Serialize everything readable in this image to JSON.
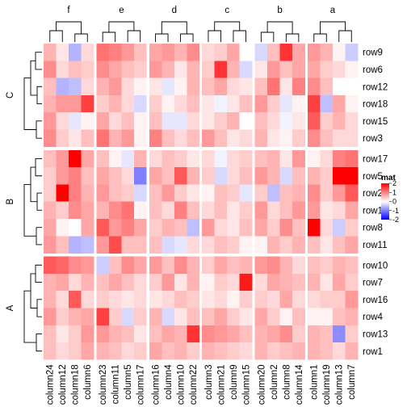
{
  "chart_data": {
    "type": "heatmap",
    "column_groups": [
      {
        "name": "f",
        "columns": [
          "column24",
          "column12",
          "column18",
          "column6"
        ]
      },
      {
        "name": "e",
        "columns": [
          "column23",
          "column11",
          "column5",
          "column17"
        ]
      },
      {
        "name": "d",
        "columns": [
          "column16",
          "column4",
          "column10",
          "column22"
        ]
      },
      {
        "name": "c",
        "columns": [
          "column3",
          "column21",
          "column9",
          "column15"
        ]
      },
      {
        "name": "b",
        "columns": [
          "column20",
          "column2",
          "column8",
          "column14"
        ]
      },
      {
        "name": "a",
        "columns": [
          "column1",
          "column19",
          "column13",
          "column7"
        ]
      }
    ],
    "row_groups": [
      {
        "name": "C",
        "rows": [
          "row9",
          "row6",
          "row12",
          "row18",
          "row15",
          "row3"
        ]
      },
      {
        "name": "B",
        "rows": [
          "row17",
          "row5",
          "row2",
          "row14",
          "row8",
          "row11"
        ]
      },
      {
        "name": "A",
        "rows": [
          "row10",
          "row7",
          "row16",
          "row4",
          "row13",
          "row1"
        ]
      }
    ],
    "values": [
      [
        0.6,
        0.2,
        -0.6,
        0.3,
        1.1,
        1.0,
        0.8,
        0.5,
        0.7,
        0.8,
        0.6,
        0.9,
        0.3,
        0.4,
        0.7,
        0.0,
        -0.3,
        0.5,
        1.6,
        0.7,
        0.8,
        0.6,
        0.1,
        -0.4
      ],
      [
        0.9,
        0.3,
        0.5,
        0.4,
        0.9,
        0.7,
        0.5,
        0.4,
        0.8,
        0.6,
        0.2,
        0.6,
        0.4,
        1.6,
        0.6,
        -0.3,
        0.2,
        0.8,
        0.5,
        0.7,
        0.7,
        0.4,
        0.3,
        0.1
      ],
      [
        0.5,
        -0.6,
        -0.5,
        0.3,
        0.6,
        0.8,
        0.3,
        0.1,
        0.2,
        -0.2,
        0.1,
        0.6,
        0.5,
        0.7,
        0.3,
        0.2,
        0.5,
        1.1,
        0.2,
        1.0,
        0.9,
        0.5,
        0.0,
        0.0
      ],
      [
        0.6,
        0.8,
        0.8,
        1.5,
        0.4,
        0.6,
        0.3,
        -0.3,
        0.4,
        0.1,
        0.3,
        0.5,
        0.2,
        -0.1,
        0.2,
        0.5,
        0.8,
        0.4,
        -0.2,
        0.1,
        1.5,
        -0.5,
        0.7,
        0.1
      ],
      [
        0.8,
        0.3,
        -0.2,
        0.1,
        0.7,
        0.3,
        0.5,
        0.1,
        0.5,
        -0.2,
        -0.2,
        0.3,
        0.2,
        0.4,
        0.6,
        0.0,
        0.5,
        0.3,
        -0.1,
        0.2,
        1.3,
        0.4,
        0.6,
        0.3
      ],
      [
        0.9,
        0.4,
        0.2,
        0.5,
        1.1,
        0.6,
        0.8,
        0.1,
        1.0,
        0.5,
        0.3,
        0.5,
        0.8,
        0.5,
        0.2,
        0.3,
        0.6,
        0.2,
        0.1,
        0.4,
        0.9,
        0.5,
        0.3,
        0.3
      ],
      [
        0.5,
        0.8,
        2.0,
        0.7,
        0.5,
        0.1,
        -0.2,
        0.6,
        0.3,
        0.5,
        0.4,
        0.2,
        0.3,
        -0.1,
        0.3,
        0.4,
        0.5,
        0.6,
        0.2,
        0.8,
        0.1,
        0.3,
        1.0,
        1.1
      ],
      [
        0.4,
        0.8,
        1.0,
        0.5,
        0.7,
        0.5,
        0.3,
        -1.0,
        0.7,
        0.5,
        1.3,
        0.6,
        0.4,
        -0.3,
        0.3,
        0.5,
        0.8,
        0.6,
        -0.3,
        0.5,
        0.6,
        0.4,
        2.0,
        2.0
      ],
      [
        0.4,
        2.0,
        1.0,
        0.6,
        0.8,
        0.5,
        0.4,
        -0.3,
        0.5,
        0.8,
        0.4,
        0.2,
        0.1,
        0.5,
        0.4,
        -0.2,
        0.4,
        -0.5,
        0.5,
        0.6,
        0.9,
        0.4,
        0.8,
        1.3
      ],
      [
        0.6,
        0.4,
        0.9,
        0.7,
        0.6,
        0.9,
        1.1,
        0.1,
        0.5,
        0.3,
        1.0,
        0.5,
        0.3,
        0.5,
        0.2,
        0.4,
        0.8,
        0.3,
        0.5,
        0.8,
        0.8,
        0.2,
        0.3,
        0.7
      ],
      [
        0.7,
        0.1,
        0.0,
        0.7,
        1.3,
        0.8,
        1.0,
        0.7,
        0.4,
        0.6,
        0.5,
        -0.5,
        0.8,
        0.3,
        0.2,
        0.5,
        0.7,
        0.4,
        0.9,
        0.5,
        2.1,
        0.3,
        -0.4,
        0.4
      ],
      [
        0.8,
        0.5,
        -0.6,
        -0.5,
        0.8,
        1.4,
        0.5,
        0.5,
        0.5,
        -0.3,
        -0.2,
        0.3,
        0.3,
        0.5,
        0.4,
        0.1,
        0.1,
        0.6,
        0.4,
        0.6,
        0.5,
        0.2,
        0.5,
        0.7
      ],
      [
        1.3,
        1.2,
        0.9,
        0.8,
        -0.4,
        0.5,
        0.9,
        0.7,
        0.8,
        0.5,
        0.9,
        0.6,
        0.4,
        0.7,
        0.5,
        0.6,
        0.8,
        0.9,
        0.6,
        0.3,
        0.5,
        0.4,
        0.6,
        0.5
      ],
      [
        0.6,
        0.7,
        0.3,
        0.6,
        0.5,
        0.7,
        0.5,
        0.3,
        0.4,
        0.8,
        0.2,
        0.6,
        0.1,
        0.4,
        0.3,
        1.8,
        0.3,
        0.7,
        0.6,
        0.5,
        0.6,
        0.2,
        0.7,
        0.4
      ],
      [
        0.6,
        0.3,
        1.3,
        0.3,
        0.4,
        0.3,
        0.2,
        0.3,
        0.2,
        0.3,
        0.5,
        0.4,
        0.2,
        0.3,
        0.1,
        0.4,
        0.4,
        0.3,
        0.7,
        0.3,
        0.3,
        0.4,
        0.4,
        0.8
      ],
      [
        0.8,
        0.4,
        0.6,
        0.7,
        1.5,
        0.4,
        -0.3,
        0.4,
        0.6,
        -0.3,
        0.2,
        0.5,
        0.5,
        0.7,
        0.4,
        0.2,
        0.7,
        0.4,
        0.1,
        0.5,
        0.1,
        0.1,
        0.5,
        0.6
      ],
      [
        0.5,
        0.2,
        0.4,
        0.8,
        0.8,
        0.6,
        0.5,
        0.2,
        0.5,
        0.7,
        0.6,
        1.6,
        0.9,
        0.8,
        0.7,
        0.5,
        0.6,
        0.7,
        0.9,
        0.4,
        0.6,
        0.5,
        -0.9,
        0.4
      ],
      [
        0.5,
        0.3,
        0.4,
        0.7,
        0.6,
        0.5,
        0.3,
        0.4,
        0.7,
        0.5,
        0.6,
        0.4,
        0.6,
        0.5,
        0.4,
        0.3,
        0.6,
        0.4,
        0.5,
        0.6,
        0.6,
        0.5,
        0.3,
        0.6
      ]
    ],
    "legend": {
      "title": "mat",
      "ticks": [
        2,
        1,
        0,
        -1,
        -2
      ],
      "range": [
        -2,
        2
      ],
      "placement": "right"
    },
    "colors": {
      "low": "#0000ff",
      "mid": "#ffffff",
      "high": "#ff0000"
    },
    "row_dendrogram": "left",
    "column_dendrogram": "top"
  }
}
